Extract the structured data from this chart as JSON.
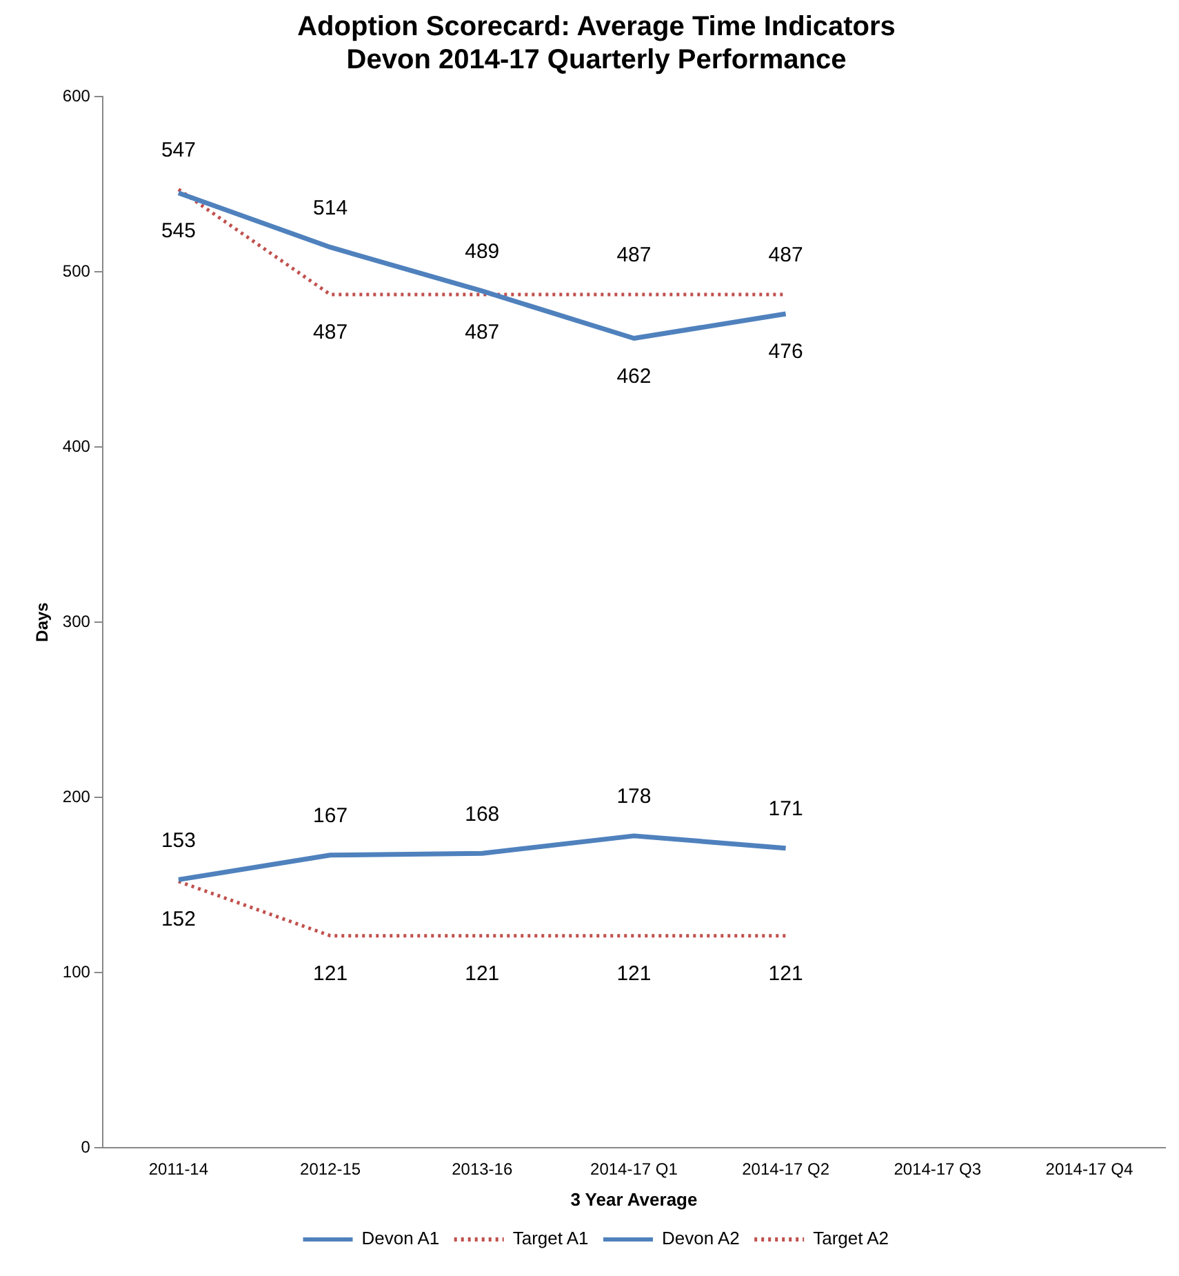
{
  "chart_data": {
    "type": "line",
    "title": [
      "Adoption Scorecard: Average Time Indicators",
      "Devon 2014-17 Quarterly Performance"
    ],
    "xlabel": "3 Year Average",
    "ylabel": "Days",
    "categories": [
      "2011-14",
      "2012-15",
      "2013-16",
      "2014-17 Q1",
      "2014-17 Q2",
      "2014-17 Q3",
      "2014-17 Q4"
    ],
    "series": [
      {
        "name": "Devon A1",
        "color": "#4f81bd",
        "line_style": "solid",
        "values": [
          545,
          514,
          489,
          462,
          476,
          null,
          null
        ]
      },
      {
        "name": "Target A1",
        "color": "#c0504d",
        "line_style": "dotted",
        "values": [
          547,
          487,
          487,
          487,
          487,
          null,
          null
        ]
      },
      {
        "name": "Devon A2",
        "color": "#4f81bd",
        "line_style": "solid",
        "values": [
          153,
          167,
          168,
          178,
          171,
          null,
          null
        ]
      },
      {
        "name": "Target A2",
        "color": "#c0504d",
        "line_style": "dotted",
        "values": [
          152,
          121,
          121,
          121,
          121,
          null,
          null
        ]
      }
    ],
    "ylim": [
      0,
      600
    ],
    "yticks": [
      0,
      100,
      200,
      300,
      400,
      500,
      600
    ],
    "grid": false,
    "legend": "bottom",
    "marker": "none",
    "data_labels": true
  }
}
